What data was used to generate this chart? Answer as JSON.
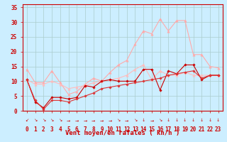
{
  "background_color": "#cceeff",
  "grid_color": "#aacccc",
  "x_labels": [
    "0",
    "1",
    "2",
    "3",
    "4",
    "5",
    "6",
    "7",
    "8",
    "9",
    "10",
    "11",
    "12",
    "13",
    "14",
    "15",
    "16",
    "17",
    "18",
    "19",
    "20",
    "21",
    "22",
    "23"
  ],
  "x_values": [
    0,
    1,
    2,
    3,
    4,
    5,
    6,
    7,
    8,
    9,
    10,
    11,
    12,
    13,
    14,
    15,
    16,
    17,
    18,
    19,
    20,
    21,
    22,
    23
  ],
  "xlabel": "Vent moyen/en rafales ( kn/h )",
  "ylim": [
    0,
    36
  ],
  "yticks": [
    0,
    5,
    10,
    15,
    20,
    25,
    30,
    35
  ],
  "series": [
    {
      "name": "rafales_light",
      "color": "#ffaaaa",
      "marker": "^",
      "markersize": 2.5,
      "linewidth": 0.8,
      "y": [
        14,
        9.5,
        9.5,
        13.5,
        9.5,
        5.5,
        6.5,
        9,
        11,
        10,
        13,
        15.5,
        17,
        22.5,
        27,
        26,
        31,
        27,
        30.5,
        30.5,
        19,
        19,
        15,
        14.5
      ]
    },
    {
      "name": "moyen_light",
      "color": "#ffbbbb",
      "marker": "^",
      "markersize": 2.5,
      "linewidth": 0.8,
      "y": [
        10.5,
        9.0,
        9.0,
        10.0,
        9.0,
        7.5,
        8.0,
        8.5,
        9.5,
        10.0,
        10.5,
        11.0,
        12.0,
        14.0,
        15.5,
        10.5,
        13.5,
        12.0,
        12.0,
        13.0,
        12.0,
        12.0,
        12.0,
        12.0
      ]
    },
    {
      "name": "rafales_dark",
      "color": "#cc0000",
      "marker": "D",
      "markersize": 1.8,
      "linewidth": 0.8,
      "y": [
        10.5,
        3.0,
        1.0,
        4.5,
        4.5,
        4.0,
        4.5,
        8.5,
        8.0,
        10.0,
        10.5,
        10.0,
        10.0,
        10.0,
        14.0,
        14.0,
        7.0,
        13.5,
        12.5,
        15.5,
        15.5,
        10.5,
        12.0,
        12.0
      ]
    },
    {
      "name": "moyen_dark",
      "color": "#dd3333",
      "marker": "D",
      "markersize": 1.8,
      "linewidth": 0.8,
      "y": [
        10.5,
        3.5,
        0.5,
        3.5,
        3.5,
        3.0,
        4.0,
        5.0,
        6.0,
        7.5,
        8.0,
        8.5,
        9.0,
        9.5,
        10.0,
        10.5,
        11.0,
        12.0,
        12.5,
        13.0,
        13.5,
        11.0,
        12.0,
        12.0
      ]
    }
  ],
  "wind_arrows": [
    "↙",
    "↘",
    "↘",
    "↘",
    "↘",
    "→",
    "→",
    "→",
    "→",
    "→",
    "→",
    "↘",
    "→",
    "↘",
    "↓",
    "→",
    "↘",
    "↓",
    "↓",
    "↓",
    "↓",
    "↓",
    "↓",
    "↓"
  ],
  "tick_fontsize": 5.5,
  "xlabel_fontsize": 6.5,
  "arrow_fontsize": 4.5,
  "text_color": "#cc0000"
}
